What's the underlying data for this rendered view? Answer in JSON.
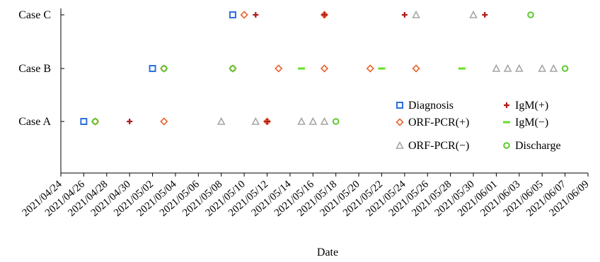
{
  "chart_data": {
    "type": "scatter",
    "title": "",
    "xlabel": "Date",
    "ylabel": "",
    "x_axis": {
      "type": "date",
      "range": [
        "2021-04-24",
        "2021-06-09"
      ],
      "tick_labels": [
        "2021/04/24",
        "2021/04/26",
        "2021/04/28",
        "2021/04/30",
        "2021/05/02",
        "2021/05/04",
        "2021/05/06",
        "2021/05/08",
        "2021/05/10",
        "2021/05/12",
        "2021/05/14",
        "2021/05/16",
        "2021/05/18",
        "2021/05/20",
        "2021/05/22",
        "2021/05/24",
        "2021/05/26",
        "2021/05/28",
        "2021/05/30",
        "2021/06/01",
        "2021/06/03",
        "2021/06/05",
        "2021/06/07",
        "2021/06/09"
      ]
    },
    "categories": [
      "Case A",
      "Case B",
      "Case C"
    ],
    "grid": false,
    "legend_position": "lower-right",
    "series": [
      {
        "name": "Diagnosis",
        "marker": "square",
        "color": "#2b6fde",
        "points": [
          {
            "case": "Case A",
            "date": "2021-04-26"
          },
          {
            "case": "Case B",
            "date": "2021-05-02"
          },
          {
            "case": "Case C",
            "date": "2021-05-09"
          }
        ]
      },
      {
        "name": "ORF-PCR(+)",
        "marker": "diamond",
        "color": "#e8642c",
        "points": [
          {
            "case": "Case A",
            "date": "2021-04-27"
          },
          {
            "case": "Case A",
            "date": "2021-05-03"
          },
          {
            "case": "Case A",
            "date": "2021-05-12"
          },
          {
            "case": "Case B",
            "date": "2021-05-03"
          },
          {
            "case": "Case B",
            "date": "2021-05-09"
          },
          {
            "case": "Case B",
            "date": "2021-05-13"
          },
          {
            "case": "Case B",
            "date": "2021-05-17"
          },
          {
            "case": "Case B",
            "date": "2021-05-21"
          },
          {
            "case": "Case B",
            "date": "2021-05-25"
          },
          {
            "case": "Case C",
            "date": "2021-05-10"
          },
          {
            "case": "Case C",
            "date": "2021-05-17"
          }
        ]
      },
      {
        "name": "ORF-PCR(−)",
        "marker": "triangle",
        "color": "#a6a6a6",
        "points": [
          {
            "case": "Case A",
            "date": "2021-05-08"
          },
          {
            "case": "Case A",
            "date": "2021-05-11"
          },
          {
            "case": "Case A",
            "date": "2021-05-15"
          },
          {
            "case": "Case A",
            "date": "2021-05-16"
          },
          {
            "case": "Case A",
            "date": "2021-05-17"
          },
          {
            "case": "Case B",
            "date": "2021-06-01"
          },
          {
            "case": "Case B",
            "date": "2021-06-02"
          },
          {
            "case": "Case B",
            "date": "2021-06-03"
          },
          {
            "case": "Case B",
            "date": "2021-06-05"
          },
          {
            "case": "Case B",
            "date": "2021-06-06"
          },
          {
            "case": "Case C",
            "date": "2021-05-25"
          },
          {
            "case": "Case C",
            "date": "2021-05-30"
          }
        ]
      },
      {
        "name": "IgM(+)",
        "marker": "plus",
        "color": "#b01818",
        "points": [
          {
            "case": "Case A",
            "date": "2021-04-30"
          },
          {
            "case": "Case A",
            "date": "2021-05-12"
          },
          {
            "case": "Case C",
            "date": "2021-05-11"
          },
          {
            "case": "Case C",
            "date": "2021-05-17"
          },
          {
            "case": "Case C",
            "date": "2021-05-24"
          },
          {
            "case": "Case C",
            "date": "2021-05-31"
          }
        ]
      },
      {
        "name": "IgM(−)",
        "marker": "dash",
        "color": "#66e023",
        "points": [
          {
            "case": "Case B",
            "date": "2021-05-15"
          },
          {
            "case": "Case B",
            "date": "2021-05-22"
          },
          {
            "case": "Case B",
            "date": "2021-05-29"
          }
        ]
      },
      {
        "name": "Discharge",
        "marker": "circle",
        "color": "#5cc92f",
        "points": [
          {
            "case": "Case A",
            "date": "2021-04-27"
          },
          {
            "case": "Case A",
            "date": "2021-05-18"
          },
          {
            "case": "Case B",
            "date": "2021-05-03"
          },
          {
            "case": "Case B",
            "date": "2021-05-09"
          },
          {
            "case": "Case B",
            "date": "2021-06-07"
          },
          {
            "case": "Case C",
            "date": "2021-06-04"
          }
        ]
      }
    ],
    "legend_order": [
      "Diagnosis",
      "IgM(+)",
      "ORF-PCR(+)",
      "IgM(−)",
      "ORF-PCR(−)",
      "Discharge"
    ]
  }
}
